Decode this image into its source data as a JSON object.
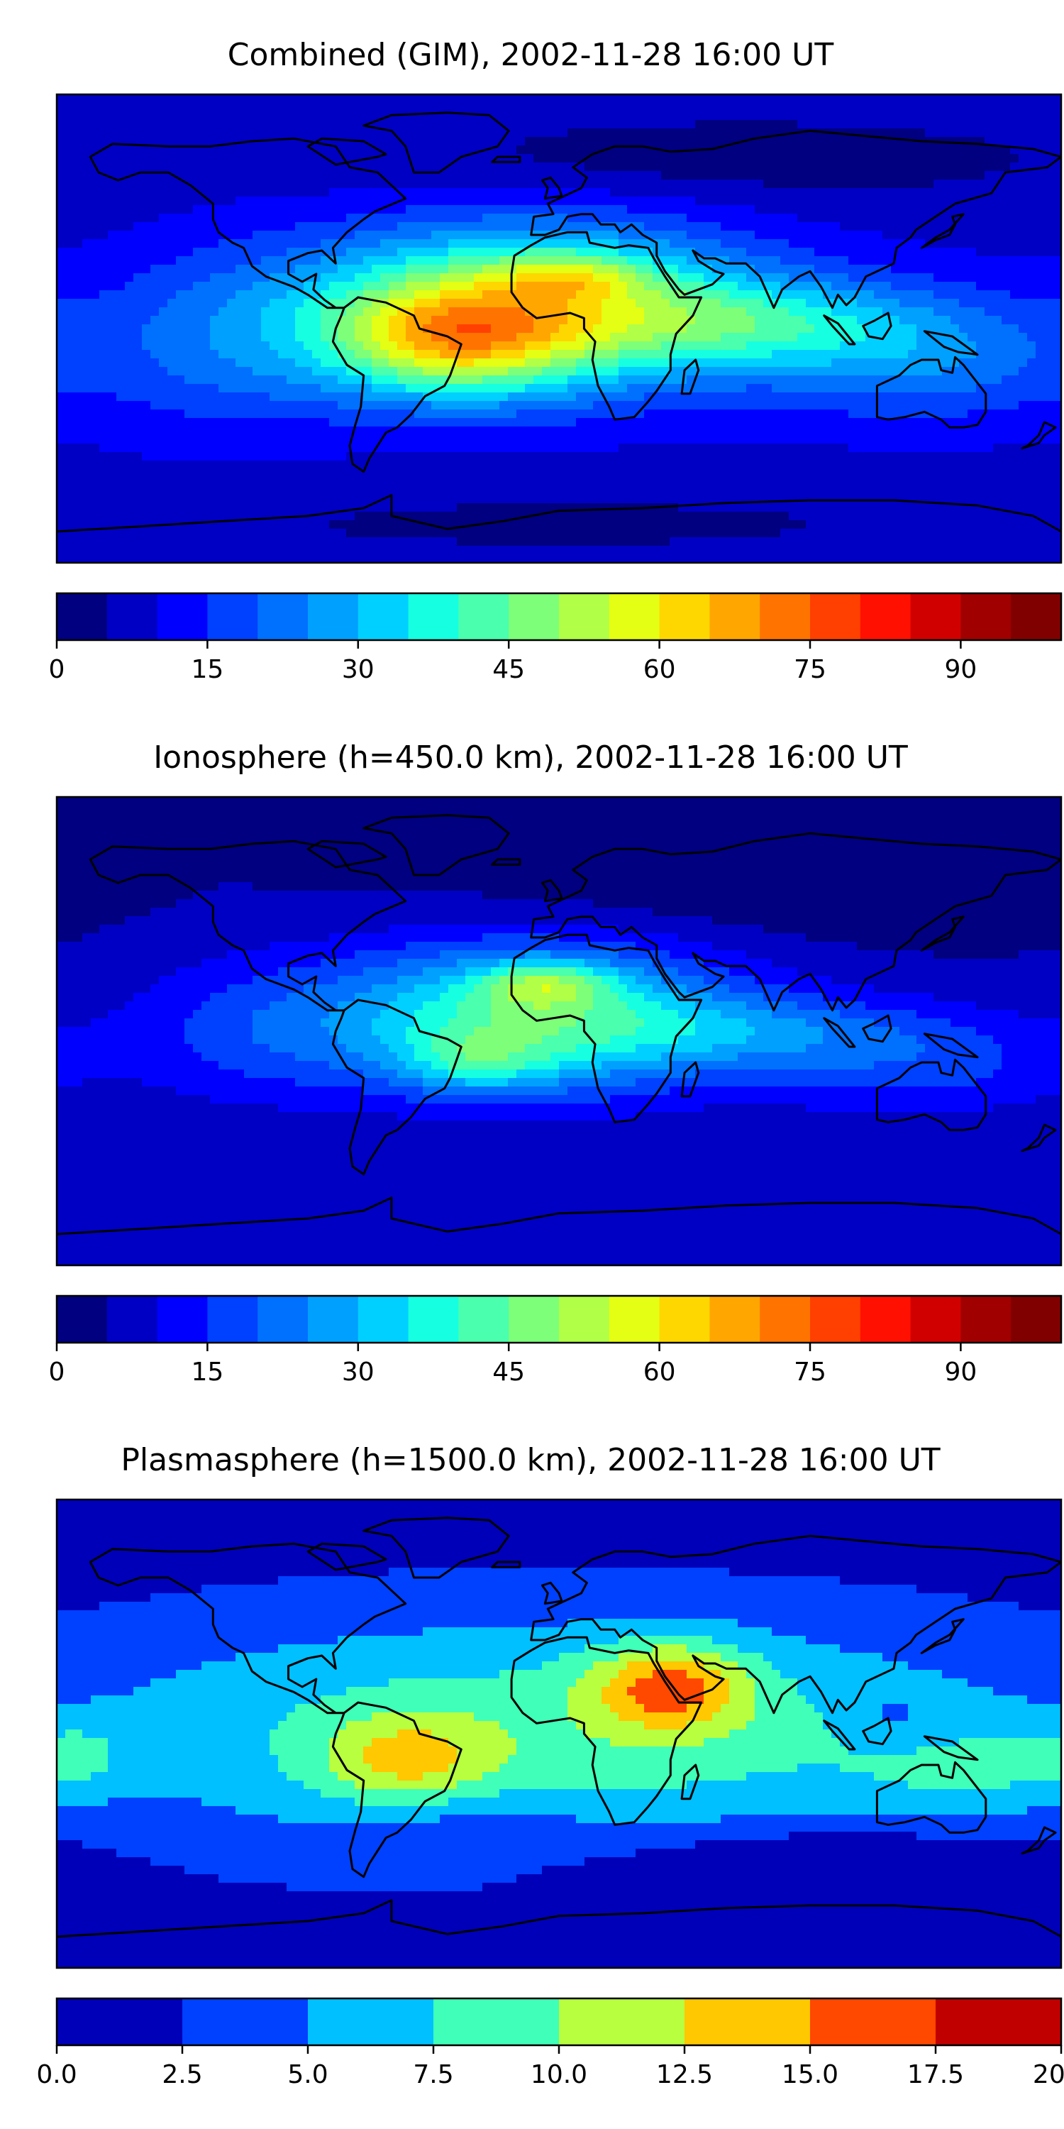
{
  "chart_data": [
    {
      "type": "heatmap",
      "title": "Combined (GIM), 2002-11-28 16:00 UT",
      "colorbar": {
        "ticks": [
          "0",
          "15",
          "30",
          "45",
          "60",
          "75",
          "90"
        ],
        "min": 0,
        "max": 100,
        "step": 5
      },
      "field": {
        "base": 8,
        "blobs": [
          {
            "lon": -10,
            "lat": 8,
            "value": 45,
            "sx": 55,
            "sy": 22
          },
          {
            "lon": -40,
            "lat": -5,
            "value": 30,
            "sx": 30,
            "sy": 15
          },
          {
            "lon": 5,
            "lat": 20,
            "value": 14,
            "sx": 18,
            "sy": 6
          },
          {
            "lon": 70,
            "lat": 2,
            "value": 18,
            "sx": 40,
            "sy": 12
          },
          {
            "lon": 130,
            "lat": -10,
            "value": 16,
            "sx": 40,
            "sy": 18
          },
          {
            "lon": -120,
            "lat": -5,
            "value": 12,
            "sx": 35,
            "sy": 25
          },
          {
            "lon": 60,
            "lat": 65,
            "value": -6,
            "sx": 90,
            "sy": 12
          },
          {
            "lon": 0,
            "lat": -75,
            "value": -4,
            "sx": 120,
            "sy": 10
          }
        ]
      }
    },
    {
      "type": "heatmap",
      "title": "Ionosphere  (h=450.0 km), 2002-11-28 16:00 UT",
      "colorbar": {
        "ticks": [
          "0",
          "15",
          "30",
          "45",
          "60",
          "75",
          "90"
        ],
        "min": 0,
        "max": 100,
        "step": 5
      },
      "field": {
        "base": 5,
        "blobs": [
          {
            "lon": -10,
            "lat": 5,
            "value": 38,
            "sx": 50,
            "sy": 20
          },
          {
            "lon": -5,
            "lat": 18,
            "value": 18,
            "sx": 16,
            "sy": 6
          },
          {
            "lon": -30,
            "lat": -12,
            "value": 14,
            "sx": 18,
            "sy": 8
          },
          {
            "lon": 70,
            "lat": 0,
            "value": 12,
            "sx": 40,
            "sy": 10
          },
          {
            "lon": 130,
            "lat": -12,
            "value": 12,
            "sx": 40,
            "sy": 15
          },
          {
            "lon": -110,
            "lat": 0,
            "value": 10,
            "sx": 35,
            "sy": 20
          },
          {
            "lon": 60,
            "lat": 55,
            "value": -4,
            "sx": 80,
            "sy": 15
          }
        ]
      }
    },
    {
      "type": "heatmap",
      "title": "Plasmasphere (h=1500.0 km), 2002-11-28 16:00 UT",
      "colorbar": {
        "ticks": [
          "0.0",
          "2.5",
          "5.0",
          "7.5",
          "10.0",
          "12.5",
          "15.0",
          "17.5",
          "20.0"
        ],
        "min": 0,
        "max": 20,
        "step": 2.5
      },
      "field": {
        "base": 1,
        "blobs": [
          {
            "lon": 0,
            "lat": 0,
            "value": 8,
            "sx": 140,
            "sy": 35
          },
          {
            "lon": 40,
            "lat": 18,
            "value": 9,
            "sx": 20,
            "sy": 12
          },
          {
            "lon": -55,
            "lat": -10,
            "value": 6,
            "sx": 22,
            "sy": 12
          },
          {
            "lon": 150,
            "lat": -15,
            "value": 3,
            "sx": 30,
            "sy": 12
          },
          {
            "lon": -175,
            "lat": -8,
            "value": 3,
            "sx": 15,
            "sy": 10
          },
          {
            "lon": 120,
            "lat": 5,
            "value": -2,
            "sx": 10,
            "sy": 8
          },
          {
            "lon": 90,
            "lat": -55,
            "value": -5,
            "sx": 50,
            "sy": 12
          },
          {
            "lon": -30,
            "lat": -35,
            "value": -2,
            "sx": 30,
            "sy": 10
          }
        ]
      }
    }
  ],
  "colors": {
    "ten_level": [
      "#00008f",
      "#0000e0",
      "#0034ff",
      "#00a0ff",
      "#12ffe6",
      "#7fff7f",
      "#e6ff12",
      "#ffa000",
      "#ff3000",
      "#bf0000"
    ],
    "twenty_level": [
      "#000080",
      "#0000c4",
      "#0000ff",
      "#0040ff",
      "#0070ff",
      "#00a0ff",
      "#00d0ff",
      "#16ffe1",
      "#4affad",
      "#7dff7a",
      "#b1ff46",
      "#e4ff13",
      "#ffd700",
      "#ffa600",
      "#ff7300",
      "#ff4000",
      "#ff1000",
      "#d10000",
      "#a00000",
      "#800000"
    ],
    "eight_level": [
      "#0000b8",
      "#0040ff",
      "#00c0ff",
      "#40ffb8",
      "#b8ff40",
      "#ffc800",
      "#ff4800",
      "#c00000"
    ]
  }
}
